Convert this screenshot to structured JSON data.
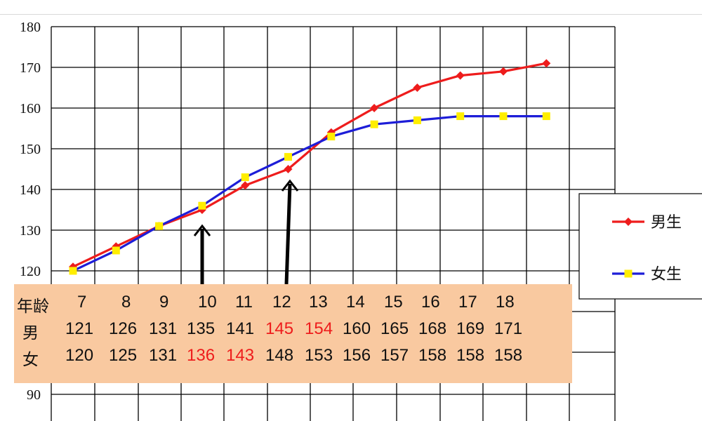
{
  "chart_data": {
    "type": "line",
    "yticks": [
      180,
      170,
      160,
      150,
      140,
      130,
      120,
      90
    ],
    "ylim": [
      85,
      180
    ],
    "series": [
      {
        "name": "男生",
        "color": "#ee1c1c",
        "marker": "diamond",
        "points": [
          [
            7,
            121
          ],
          [
            8,
            126
          ],
          [
            9,
            131
          ],
          [
            10,
            135
          ],
          [
            11,
            141
          ],
          [
            12,
            145
          ],
          [
            13,
            154
          ],
          [
            14,
            160
          ],
          [
            15,
            165
          ],
          [
            16,
            168
          ],
          [
            17,
            169
          ],
          [
            18,
            171
          ]
        ]
      },
      {
        "name": "女生",
        "color": "#1d1dd8",
        "marker": "square",
        "marker_color": "#ffee00",
        "points": [
          [
            7,
            120
          ],
          [
            8,
            125
          ],
          [
            9,
            131
          ],
          [
            10,
            136
          ],
          [
            11,
            143
          ],
          [
            12,
            148
          ],
          [
            13,
            153
          ],
          [
            14,
            156
          ],
          [
            15,
            157
          ],
          [
            16,
            158
          ],
          [
            17,
            158
          ],
          [
            18,
            158
          ]
        ]
      }
    ],
    "legend": [
      {
        "label": "男生",
        "color": "#ee1c1c",
        "marker": "diamond"
      },
      {
        "label": "女生",
        "color": "#1d1dd8",
        "marker": "square",
        "marker_color": "#ffee00"
      }
    ],
    "legend_position": "right",
    "grid": true,
    "annotations": [
      {
        "type": "arrow",
        "points_to": "crossover near age 10"
      },
      {
        "type": "arrow",
        "points_to": "crossover near age 12-13"
      }
    ]
  },
  "table": {
    "background": "#f9c9a0",
    "highlight_color": "#ee1c1c",
    "header_label": "年龄",
    "ages": [
      "7",
      "8",
      "9",
      "10",
      "11",
      "12",
      "13",
      "14",
      "15",
      "16",
      "17",
      "18"
    ],
    "boys_label": "男",
    "boys": [
      "121",
      "126",
      "131",
      "135",
      "141",
      "145",
      "154",
      "160",
      "165",
      "168",
      "169",
      "171"
    ],
    "boys_highlight": [
      false,
      false,
      false,
      false,
      false,
      true,
      true,
      false,
      false,
      false,
      false,
      false
    ],
    "girls_label": "女",
    "girls": [
      "120",
      "125",
      "131",
      "136",
      "143",
      "148",
      "153",
      "156",
      "157",
      "158",
      "158",
      "158"
    ],
    "girls_highlight": [
      false,
      false,
      false,
      true,
      true,
      false,
      false,
      false,
      false,
      false,
      false,
      false
    ]
  }
}
